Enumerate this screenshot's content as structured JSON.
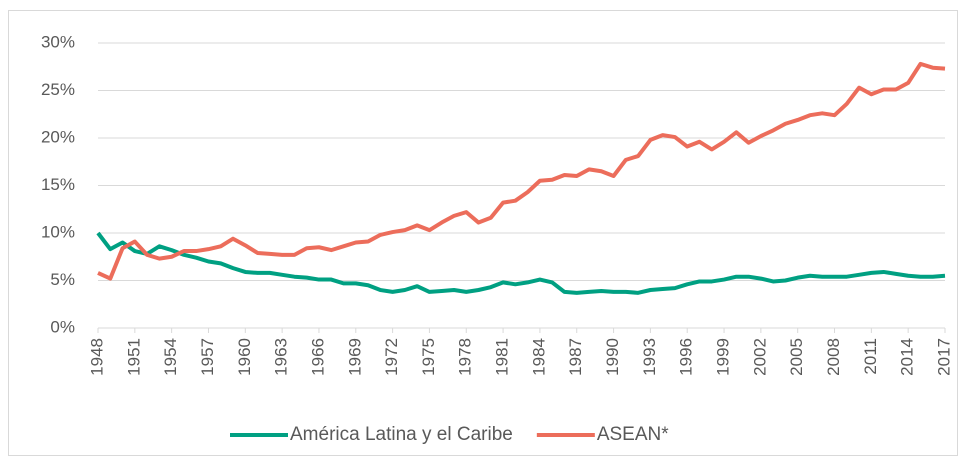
{
  "chart_data": {
    "type": "line",
    "x": [
      1948,
      1949,
      1950,
      1951,
      1952,
      1953,
      1954,
      1955,
      1956,
      1957,
      1958,
      1959,
      1960,
      1961,
      1962,
      1963,
      1964,
      1965,
      1966,
      1967,
      1968,
      1969,
      1970,
      1971,
      1972,
      1973,
      1974,
      1975,
      1976,
      1977,
      1978,
      1979,
      1980,
      1981,
      1982,
      1983,
      1984,
      1985,
      1986,
      1987,
      1988,
      1989,
      1990,
      1991,
      1992,
      1993,
      1994,
      1995,
      1996,
      1997,
      1998,
      1999,
      2000,
      2001,
      2002,
      2003,
      2004,
      2005,
      2006,
      2007,
      2008,
      2009,
      2010,
      2011,
      2012,
      2013,
      2014,
      2015,
      2016,
      2017
    ],
    "series": [
      {
        "name": "América Latina y el Caribe",
        "color": "#00a082",
        "values": [
          10,
          8.3,
          9,
          8.1,
          7.8,
          8.6,
          8.2,
          7.7,
          7.4,
          7.0,
          6.8,
          6.3,
          5.9,
          5.8,
          5.8,
          5.6,
          5.4,
          5.3,
          5.1,
          5.1,
          4.7,
          4.7,
          4.5,
          4.0,
          3.8,
          4.0,
          4.4,
          3.8,
          3.9,
          4.0,
          3.8,
          4.0,
          4.3,
          4.8,
          4.6,
          4.8,
          5.1,
          4.8,
          3.8,
          3.7,
          3.8,
          3.9,
          3.8,
          3.8,
          3.7,
          4.0,
          4.1,
          4.2,
          4.6,
          4.9,
          4.9,
          5.1,
          5.4,
          5.4,
          5.2,
          4.9,
          5.0,
          5.3,
          5.5,
          5.4,
          5.4,
          5.4,
          5.6,
          5.8,
          5.9,
          5.7,
          5.5,
          5.4,
          5.4,
          5.5
        ]
      },
      {
        "name": "ASEAN*",
        "color": "#ec6d5b",
        "values": [
          5.8,
          5.2,
          8.4,
          9.1,
          7.7,
          7.3,
          7.5,
          8.1,
          8.1,
          8.3,
          8.6,
          9.4,
          8.7,
          7.9,
          7.8,
          7.7,
          7.7,
          8.4,
          8.5,
          8.2,
          8.6,
          9.0,
          9.1,
          9.8,
          10.1,
          10.3,
          10.8,
          10.3,
          11.1,
          11.8,
          12.2,
          11.1,
          11.6,
          13.2,
          13.4,
          14.3,
          15.5,
          15.6,
          16.1,
          16.0,
          16.7,
          16.5,
          16.0,
          17.7,
          18.1,
          19.8,
          20.3,
          20.1,
          19.1,
          19.6,
          18.8,
          19.6,
          20.6,
          19.5,
          20.2,
          20.8,
          21.5,
          21.9,
          22.4,
          22.6,
          22.4,
          23.6,
          25.3,
          24.6,
          25.1,
          25.1,
          25.8,
          27.8,
          27.4,
          27.3
        ]
      }
    ],
    "xlim": [
      1948,
      2017
    ],
    "xticks": [
      1948,
      1951,
      1954,
      1957,
      1960,
      1963,
      1966,
      1969,
      1972,
      1975,
      1978,
      1981,
      1984,
      1987,
      1990,
      1993,
      1996,
      1999,
      2002,
      2005,
      2008,
      2011,
      2014,
      2017
    ],
    "ylim": [
      0,
      30
    ],
    "yticks": [
      {
        "value": 0,
        "label": "0%"
      },
      {
        "value": 5,
        "label": "5%"
      },
      {
        "value": 10,
        "label": "10%"
      },
      {
        "value": 15,
        "label": "15%"
      },
      {
        "value": 20,
        "label": "20%"
      },
      {
        "value": 25,
        "label": "25%"
      },
      {
        "value": 30,
        "label": "30%"
      }
    ],
    "grid": true,
    "legend": "bottom"
  }
}
